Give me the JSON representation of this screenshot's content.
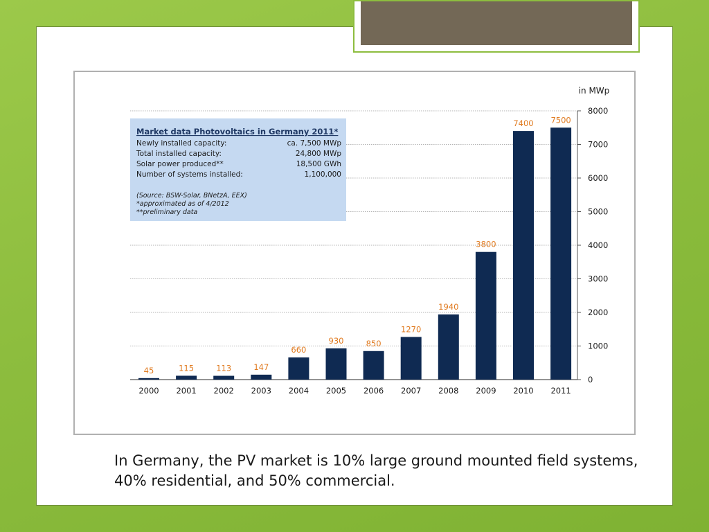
{
  "chart_data": {
    "type": "bar",
    "categories": [
      "2000",
      "2001",
      "2002",
      "2003",
      "2004",
      "2005",
      "2006",
      "2007",
      "2008",
      "2009",
      "2010",
      "2011"
    ],
    "values": [
      45,
      115,
      113,
      147,
      660,
      930,
      850,
      1270,
      1940,
      3800,
      7400,
      7500
    ],
    "unit_label": "in MWp",
    "ylim": [
      0,
      8000
    ],
    "yticks": [
      0,
      1000,
      2000,
      3000,
      4000,
      5000,
      6000,
      7000,
      8000
    ],
    "grid": true,
    "y_axis_side": "right",
    "bar_color": "#0f2a52",
    "label_color": "#e07a1f"
  },
  "infobox": {
    "title": "Market data Photovoltaics in Germany 2011*",
    "rows": [
      {
        "label": "Newly installed capacity:",
        "value": "ca. 7,500 MWp"
      },
      {
        "label": "Total installed capacity:",
        "value": "24,800 MWp"
      },
      {
        "label": "Solar power produced**",
        "value": "18,500 GWh"
      },
      {
        "label": "Number of systems installed:",
        "value": "1,100,000"
      }
    ],
    "notes": [
      "(Source: BSW-Solar, BNetzA, EEX)",
      "*approximated as of 4/2012",
      "**preliminary  data"
    ],
    "background": "#c5d9f1"
  },
  "caption": "In Germany, the PV market is 10% large ground mounted field systems, 40% residential, and 50% commercial."
}
